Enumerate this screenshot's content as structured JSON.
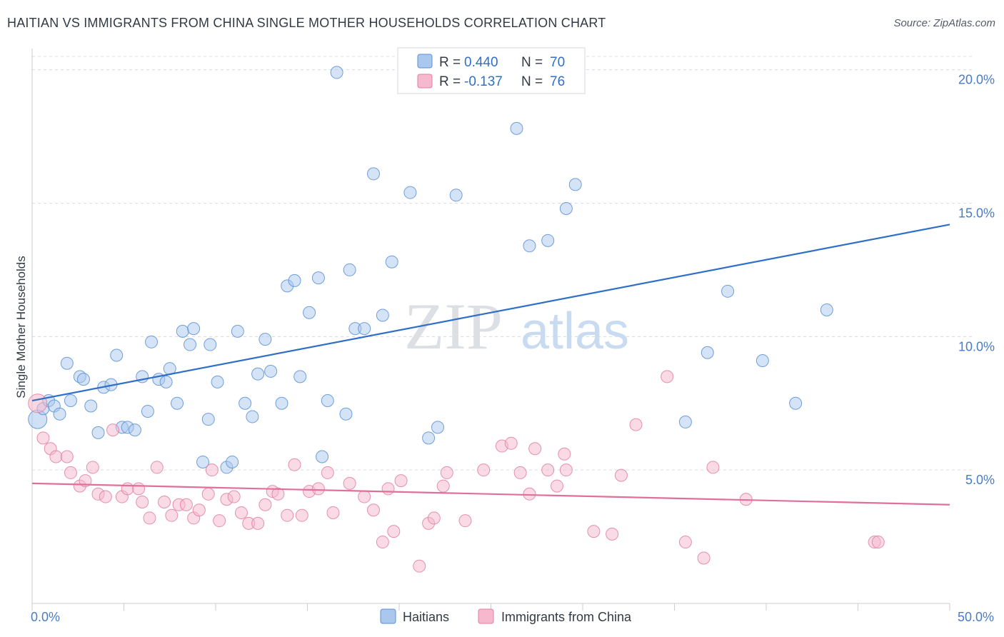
{
  "header": {
    "title": "HAITIAN VS IMMIGRANTS FROM CHINA SINGLE MOTHER HOUSEHOLDS CORRELATION CHART",
    "source": "Source: ZipAtlas.com"
  },
  "watermark": {
    "zip": "ZIP",
    "atlas": "atlas"
  },
  "legend_top": {
    "rows": [
      {
        "r_label": "R = ",
        "r_value": "0.440",
        "n_label": "N = ",
        "n_value": "70"
      },
      {
        "r_label": "R = ",
        "r_value": "-0.137",
        "n_label": "N = ",
        "n_value": "76"
      }
    ]
  },
  "colors": {
    "haitians_fill": "#aac8ee",
    "haitians_stroke": "#5b8fd6",
    "haitians_line": "#2f6fc8",
    "china_fill": "#f5b8cc",
    "china_stroke": "#e07fa0",
    "china_line": "#e0709a",
    "grid": "#d8dce2",
    "tick_label": "#4a7cc4"
  },
  "chart_data": {
    "type": "scatter",
    "title": "HAITIAN VS IMMIGRANTS FROM CHINA SINGLE MOTHER HOUSEHOLDS CORRELATION CHART",
    "xlabel": "",
    "ylabel": "Single Mother Households",
    "xlim": [
      0,
      50
    ],
    "ylim": [
      0,
      20.5
    ],
    "x_tick_labels": [
      "0.0%",
      "50.0%"
    ],
    "y_ticks": [
      5,
      10,
      15,
      20
    ],
    "y_tick_labels": [
      "5.0%",
      "10.0%",
      "15.0%",
      "20.0%"
    ],
    "grid": "horizontal dashed",
    "legend": "top-center",
    "series": [
      {
        "name": "Haitians",
        "r": 0.44,
        "n": 70,
        "trend": {
          "x": [
            0,
            50
          ],
          "y": [
            7.6,
            14.2
          ]
        },
        "points": [
          [
            0.3,
            6.9
          ],
          [
            0.6,
            7.3
          ],
          [
            0.9,
            7.6
          ],
          [
            1.2,
            7.4
          ],
          [
            1.5,
            7.1
          ],
          [
            1.9,
            9.0
          ],
          [
            2.1,
            7.6
          ],
          [
            2.6,
            8.5
          ],
          [
            2.8,
            8.4
          ],
          [
            3.2,
            7.4
          ],
          [
            3.6,
            6.4
          ],
          [
            3.9,
            8.1
          ],
          [
            4.3,
            8.2
          ],
          [
            4.6,
            9.3
          ],
          [
            4.9,
            6.6
          ],
          [
            5.2,
            6.6
          ],
          [
            5.6,
            6.5
          ],
          [
            6.0,
            8.5
          ],
          [
            6.3,
            7.2
          ],
          [
            6.5,
            9.8
          ],
          [
            6.9,
            8.4
          ],
          [
            7.3,
            8.3
          ],
          [
            7.5,
            8.8
          ],
          [
            7.9,
            7.5
          ],
          [
            8.2,
            10.2
          ],
          [
            8.6,
            9.7
          ],
          [
            8.8,
            10.3
          ],
          [
            9.3,
            5.3
          ],
          [
            9.6,
            6.9
          ],
          [
            9.7,
            9.7
          ],
          [
            10.1,
            8.3
          ],
          [
            10.6,
            5.1
          ],
          [
            10.9,
            5.3
          ],
          [
            11.2,
            10.2
          ],
          [
            11.6,
            7.5
          ],
          [
            12.0,
            7.0
          ],
          [
            12.3,
            8.6
          ],
          [
            12.7,
            9.9
          ],
          [
            13.0,
            8.7
          ],
          [
            13.6,
            7.5
          ],
          [
            13.9,
            11.9
          ],
          [
            14.3,
            12.1
          ],
          [
            14.6,
            8.5
          ],
          [
            15.1,
            10.9
          ],
          [
            15.6,
            12.2
          ],
          [
            15.8,
            5.5
          ],
          [
            16.1,
            7.6
          ],
          [
            16.6,
            19.9
          ],
          [
            17.1,
            7.1
          ],
          [
            17.3,
            12.5
          ],
          [
            17.6,
            10.3
          ],
          [
            18.1,
            10.3
          ],
          [
            18.6,
            16.1
          ],
          [
            19.1,
            10.8
          ],
          [
            19.6,
            12.8
          ],
          [
            20.6,
            15.4
          ],
          [
            21.6,
            6.2
          ],
          [
            22.1,
            6.6
          ],
          [
            23.1,
            15.3
          ],
          [
            26.4,
            17.8
          ],
          [
            27.1,
            13.4
          ],
          [
            28.1,
            13.6
          ],
          [
            29.1,
            14.8
          ],
          [
            29.6,
            15.7
          ],
          [
            35.6,
            6.8
          ],
          [
            36.8,
            9.4
          ],
          [
            37.9,
            11.7
          ],
          [
            39.8,
            9.1
          ],
          [
            41.6,
            7.5
          ],
          [
            43.3,
            11.0
          ]
        ]
      },
      {
        "name": "Immigrants from China",
        "r": -0.137,
        "n": 76,
        "trend": {
          "x": [
            0,
            50
          ],
          "y": [
            4.5,
            3.7
          ]
        },
        "points": [
          [
            0.3,
            7.5
          ],
          [
            0.6,
            6.2
          ],
          [
            1.0,
            5.8
          ],
          [
            1.3,
            5.5
          ],
          [
            1.9,
            5.5
          ],
          [
            2.1,
            4.9
          ],
          [
            2.6,
            4.4
          ],
          [
            2.9,
            4.6
          ],
          [
            3.3,
            5.1
          ],
          [
            3.6,
            4.1
          ],
          [
            4.0,
            4.0
          ],
          [
            4.4,
            6.5
          ],
          [
            4.9,
            4.0
          ],
          [
            5.2,
            4.3
          ],
          [
            5.8,
            4.3
          ],
          [
            6.0,
            3.8
          ],
          [
            6.4,
            3.2
          ],
          [
            6.8,
            5.1
          ],
          [
            7.2,
            3.8
          ],
          [
            7.6,
            3.3
          ],
          [
            8.0,
            3.7
          ],
          [
            8.4,
            3.7
          ],
          [
            8.8,
            3.2
          ],
          [
            9.1,
            3.5
          ],
          [
            9.6,
            4.1
          ],
          [
            9.8,
            5.0
          ],
          [
            10.2,
            3.1
          ],
          [
            10.6,
            3.9
          ],
          [
            11.0,
            4.0
          ],
          [
            11.4,
            3.4
          ],
          [
            11.8,
            3.0
          ],
          [
            12.3,
            3.0
          ],
          [
            12.7,
            3.7
          ],
          [
            13.1,
            4.2
          ],
          [
            13.4,
            4.1
          ],
          [
            13.9,
            3.3
          ],
          [
            14.3,
            5.2
          ],
          [
            14.7,
            3.3
          ],
          [
            15.1,
            4.2
          ],
          [
            15.6,
            4.3
          ],
          [
            16.1,
            4.9
          ],
          [
            16.4,
            3.4
          ],
          [
            17.3,
            4.5
          ],
          [
            18.1,
            4.0
          ],
          [
            18.6,
            3.5
          ],
          [
            19.1,
            2.3
          ],
          [
            19.4,
            4.3
          ],
          [
            19.7,
            2.7
          ],
          [
            20.1,
            4.6
          ],
          [
            21.1,
            1.4
          ],
          [
            21.6,
            3.0
          ],
          [
            21.9,
            3.2
          ],
          [
            22.4,
            4.4
          ],
          [
            22.6,
            4.9
          ],
          [
            23.6,
            3.1
          ],
          [
            24.6,
            5.0
          ],
          [
            25.6,
            5.9
          ],
          [
            26.1,
            6.0
          ],
          [
            26.6,
            4.9
          ],
          [
            27.1,
            4.1
          ],
          [
            27.4,
            5.8
          ],
          [
            28.1,
            5.0
          ],
          [
            28.6,
            4.4
          ],
          [
            29.0,
            5.6
          ],
          [
            29.1,
            5.0
          ],
          [
            30.6,
            2.7
          ],
          [
            31.6,
            2.6
          ],
          [
            32.1,
            4.8
          ],
          [
            32.9,
            6.7
          ],
          [
            34.6,
            8.5
          ],
          [
            35.6,
            2.3
          ],
          [
            36.6,
            1.7
          ],
          [
            37.1,
            5.1
          ],
          [
            38.9,
            3.9
          ],
          [
            45.9,
            2.3
          ],
          [
            46.1,
            2.3
          ]
        ]
      }
    ]
  },
  "bottom_legend": {
    "items": [
      {
        "label": "Haitians"
      },
      {
        "label": "Immigrants from China"
      }
    ]
  }
}
